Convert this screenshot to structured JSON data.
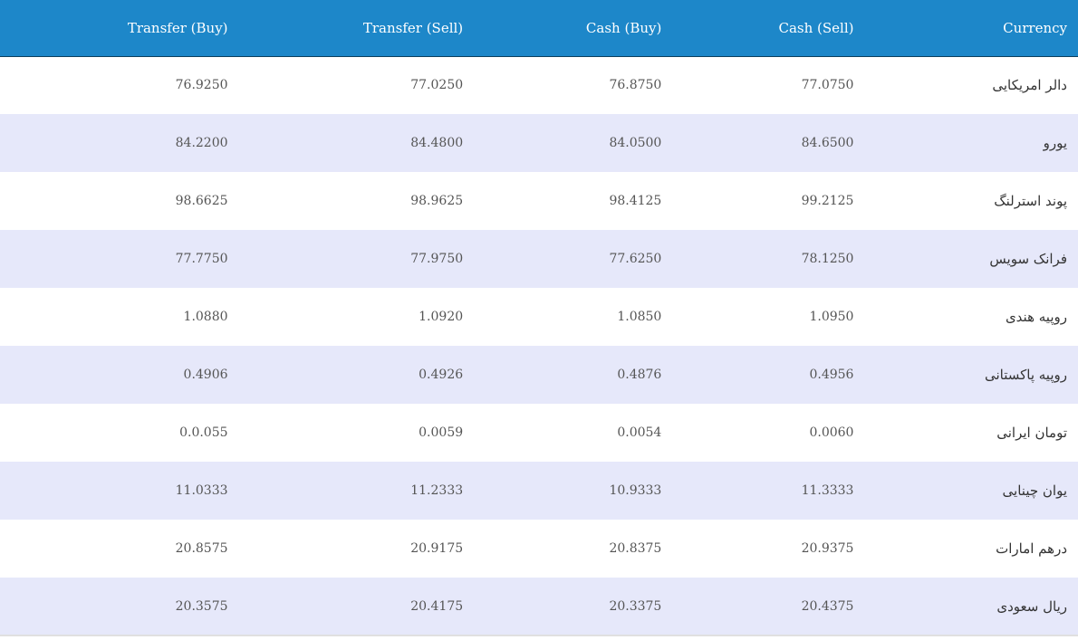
{
  "table": {
    "headers": {
      "transfer_buy": "Transfer (Buy)",
      "transfer_sell": "Transfer (Sell)",
      "cash_buy": "Cash (Buy)",
      "cash_sell": "Cash (Sell)",
      "currency": "Currency"
    },
    "rows": [
      {
        "transfer_buy": "76.9250",
        "transfer_sell": "77.0250",
        "cash_buy": "76.8750",
        "cash_sell": "77.0750",
        "currency": "دالر امریکایی"
      },
      {
        "transfer_buy": "84.2200",
        "transfer_sell": "84.4800",
        "cash_buy": "84.0500",
        "cash_sell": "84.6500",
        "currency": "یورو"
      },
      {
        "transfer_buy": "98.6625",
        "transfer_sell": "98.9625",
        "cash_buy": "98.4125",
        "cash_sell": "99.2125",
        "currency": "پوند استرلنگ"
      },
      {
        "transfer_buy": "77.7750",
        "transfer_sell": "77.9750",
        "cash_buy": "77.6250",
        "cash_sell": "78.1250",
        "currency": "فرانک سویس"
      },
      {
        "transfer_buy": "1.0880",
        "transfer_sell": "1.0920",
        "cash_buy": "1.0850",
        "cash_sell": "1.0950",
        "currency": "روپیه هندی"
      },
      {
        "transfer_buy": "0.4906",
        "transfer_sell": "0.4926",
        "cash_buy": "0.4876",
        "cash_sell": "0.4956",
        "currency": "روپیه پاکستانی"
      },
      {
        "transfer_buy": "0.0.055",
        "transfer_sell": "0.0059",
        "cash_buy": "0.0054",
        "cash_sell": "0.0060",
        "currency": "تومان ایرانی"
      },
      {
        "transfer_buy": "11.0333",
        "transfer_sell": "11.2333",
        "cash_buy": "10.9333",
        "cash_sell": "11.3333",
        "currency": "یوان چینایی"
      },
      {
        "transfer_buy": "20.8575",
        "transfer_sell": "20.9175",
        "cash_buy": "20.8375",
        "cash_sell": "20.9375",
        "currency": "درهم امارات"
      },
      {
        "transfer_buy": "20.3575",
        "transfer_sell": "20.4175",
        "cash_buy": "20.3375",
        "cash_sell": "20.4375",
        "currency": "ریال سعودی"
      }
    ]
  },
  "colors": {
    "header_bg": "#1d87c9",
    "stripe_bg": "#e6e8fa"
  }
}
